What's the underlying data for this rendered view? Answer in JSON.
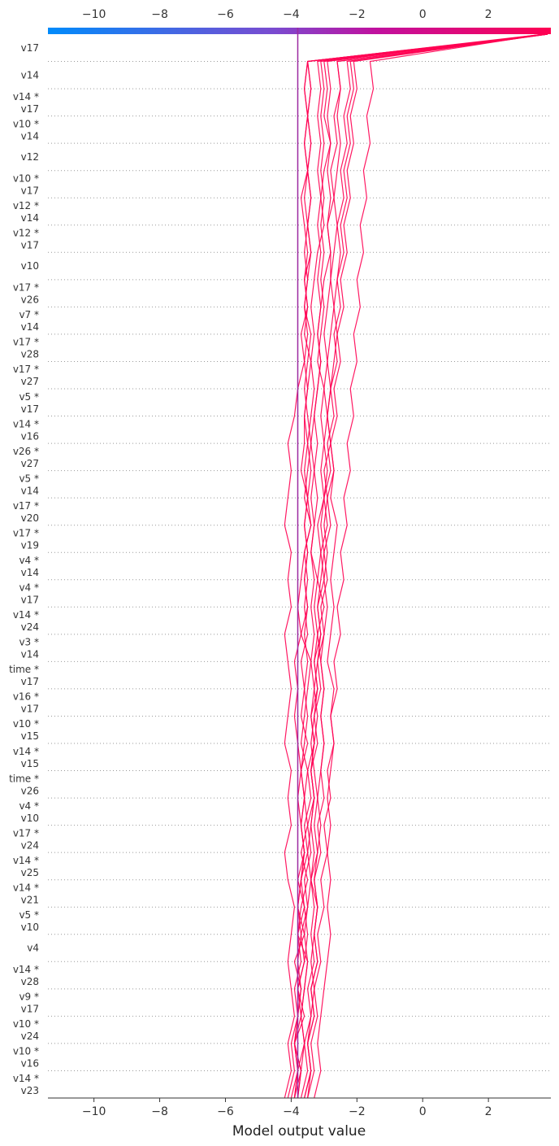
{
  "chart_data": {
    "type": "line",
    "title": "",
    "xlabel": "Model output value",
    "ylabel": "",
    "xlim": [
      -11.4,
      3.9
    ],
    "xticks": [
      -10,
      -8,
      -6,
      -4,
      -2,
      0,
      2
    ],
    "xtick_labels": [
      "−10",
      "−8",
      "−6",
      "−4",
      "−2",
      "0",
      "2"
    ],
    "base_value": -3.8,
    "colormap": [
      "#008bfb",
      "#7a4bd0",
      "#c0119f",
      "#ff0052"
    ],
    "line_color": "#ff0052",
    "grid": "dotted horizontal",
    "features": [
      [
        "v17"
      ],
      [
        "v14"
      ],
      [
        "v14 *",
        "v17"
      ],
      [
        "v10 *",
        "v14"
      ],
      [
        "v12"
      ],
      [
        "v10 *",
        "v17"
      ],
      [
        "v12 *",
        "v14"
      ],
      [
        "v12 *",
        "v17"
      ],
      [
        "v10"
      ],
      [
        "v17 *",
        "v26"
      ],
      [
        "v7 *",
        "v14"
      ],
      [
        "v17 *",
        "v28"
      ],
      [
        "v17 *",
        "v27"
      ],
      [
        "v5 *",
        "v17"
      ],
      [
        "v14 *",
        "v16"
      ],
      [
        "v26 *",
        "v27"
      ],
      [
        "v5 *",
        "v14"
      ],
      [
        "v17 *",
        "v20"
      ],
      [
        "v17 *",
        "v19"
      ],
      [
        "v4 *",
        "v14"
      ],
      [
        "v4 *",
        "v17"
      ],
      [
        "v14 *",
        "v24"
      ],
      [
        "v3 *",
        "v14"
      ],
      [
        "time *",
        "v17"
      ],
      [
        "v16 *",
        "v17"
      ],
      [
        "v10 *",
        "v15"
      ],
      [
        "v14 *",
        "v15"
      ],
      [
        "time *",
        "v26"
      ],
      [
        "v4 *",
        "v10"
      ],
      [
        "v17 *",
        "v24"
      ],
      [
        "v14 *",
        "v25"
      ],
      [
        "v14 *",
        "v21"
      ],
      [
        "v5 *",
        "v10"
      ],
      [
        "v4"
      ],
      [
        "v14 *",
        "v28"
      ],
      [
        "v9 *",
        "v17"
      ],
      [
        "v10 *",
        "v24"
      ],
      [
        "v10 *",
        "v16"
      ],
      [
        "v14 *",
        "v23"
      ]
    ],
    "series": [
      {
        "values": [
          -4.0,
          -3.8,
          -3.6,
          -3.7,
          -3.6,
          -3.5,
          -3.8,
          -3.7,
          -3.5,
          -3.7,
          -3.5,
          -3.6,
          -3.5,
          -3.7,
          -3.6,
          -3.5,
          -3.4,
          -3.7,
          -3.5,
          -3.6,
          -3.5,
          -3.6,
          -3.5,
          -3.7,
          -3.6,
          -3.6,
          -3.5,
          -3.4,
          -3.6,
          -3.5,
          -3.6,
          -3.5,
          -3.6,
          -3.7,
          -3.5,
          -3.6,
          -3.5,
          -3.6,
          -3.5,
          3.7
        ]
      },
      {
        "values": [
          -3.9,
          -3.7,
          -3.9,
          -3.6,
          -3.8,
          -3.6,
          -3.5,
          -3.6,
          -3.8,
          -3.6,
          -3.7,
          -3.6,
          -3.7,
          -3.5,
          -3.7,
          -3.6,
          -3.7,
          -3.5,
          -3.6,
          -3.5,
          -3.6,
          -3.4,
          -3.6,
          -3.5,
          -3.4,
          -3.5,
          -3.6,
          -3.5,
          -3.4,
          -3.6,
          -3.5,
          -3.4,
          -3.5,
          -3.4,
          -3.5,
          -3.4,
          -3.5,
          -3.4,
          -3.5,
          3.8
        ]
      },
      {
        "values": [
          -3.6,
          -3.4,
          -3.5,
          -3.3,
          -3.4,
          -3.2,
          -3.3,
          -3.2,
          -3.3,
          -3.1,
          -3.2,
          -3.0,
          -3.1,
          -3.0,
          -3.1,
          -3.0,
          -3.1,
          -3.2,
          -3.0,
          -3.2,
          -3.1,
          -3.2,
          -3.0,
          -3.1,
          -3.0,
          -3.1,
          -3.0,
          -3.2,
          -3.1,
          -3.0,
          -3.1,
          -3.0,
          -3.1,
          -3.0,
          -3.1,
          -3.0,
          -3.1,
          -3.0,
          -3.1,
          3.7
        ]
      },
      {
        "values": [
          -4.2,
          -4.0,
          -4.1,
          -3.9,
          -4.0,
          -4.1,
          -4.0,
          -3.9,
          -4.1,
          -4.2,
          -4.0,
          -4.1,
          -4.0,
          -4.2,
          -4.1,
          -4.0,
          -4.1,
          -4.2,
          -4.0,
          -4.1,
          -4.0,
          -4.2,
          -4.1,
          -4.0,
          -4.1,
          -3.9,
          -3.8,
          -3.6,
          -3.7,
          -3.5,
          -3.6,
          -3.4,
          -3.5,
          -3.4,
          -3.5,
          -3.4,
          -3.5,
          -3.4,
          -3.5,
          3.8
        ]
      },
      {
        "values": [
          -3.5,
          -3.4,
          -3.5,
          -3.3,
          -3.4,
          -3.2,
          -3.3,
          -3.2,
          -3.4,
          -3.2,
          -3.3,
          -3.2,
          -3.3,
          -3.4,
          -3.3,
          -3.2,
          -3.3,
          -3.2,
          -3.3,
          -3.2,
          -3.4,
          -3.3,
          -3.2,
          -3.3,
          -3.2,
          -3.3,
          -3.2,
          -3.1,
          -3.2,
          -3.1,
          -3.2,
          -3.1,
          -3.2,
          -3.1,
          -3.2,
          -3.1,
          -3.2,
          -3.1,
          -3.2,
          3.8
        ]
      },
      {
        "values": [
          -3.8,
          -3.7,
          -3.9,
          -3.8,
          -3.7,
          -3.9,
          -3.6,
          -3.8,
          -3.7,
          -3.6,
          -3.7,
          -3.8,
          -3.7,
          -3.8,
          -3.9,
          -3.8,
          -3.9,
          -3.7,
          -3.8,
          -3.7,
          -3.6,
          -3.4,
          -3.5,
          -3.4,
          -3.5,
          -3.4,
          -3.3,
          -3.4,
          -3.3,
          -3.4,
          -3.3,
          -3.2,
          -3.0,
          -3.1,
          -3.0,
          -2.8,
          -3.0,
          -2.9,
          -3.0,
          3.8
        ]
      },
      {
        "values": [
          -3.3,
          -3.1,
          -3.2,
          -3.1,
          -3.0,
          -2.9,
          -2.8,
          -2.9,
          -2.8,
          -2.9,
          -2.8,
          -2.9,
          -2.8,
          -2.7,
          -2.8,
          -2.7,
          -2.9,
          -2.8,
          -2.7,
          -2.8,
          -2.7,
          -2.6,
          -2.8,
          -2.7,
          -2.8,
          -2.9,
          -3.0,
          -2.9,
          -3.0,
          -2.9,
          -2.8,
          -2.8,
          -2.9,
          -2.8,
          -2.9,
          -2.8,
          -2.9,
          -2.8,
          -2.9,
          3.7
        ]
      },
      {
        "values": [
          -3.7,
          -3.5,
          -3.6,
          -3.4,
          -3.5,
          -3.3,
          -3.4,
          -3.3,
          -3.4,
          -3.3,
          -3.4,
          -3.3,
          -3.4,
          -3.3,
          -3.4,
          -3.3,
          -3.4,
          -3.3,
          -3.4,
          -3.3,
          -3.4,
          -3.3,
          -3.4,
          -3.3,
          -3.4,
          -3.3,
          -3.2,
          -3.1,
          -3.2,
          -3.1,
          -3.0,
          -2.8,
          -2.9,
          -2.7,
          -2.8,
          -2.6,
          -2.7,
          -2.5,
          -2.6,
          3.8
        ]
      },
      {
        "values": [
          -3.9,
          -3.8,
          -3.9,
          -3.8,
          -3.7,
          -3.8,
          -3.7,
          -3.8,
          -3.7,
          -3.6,
          -3.7,
          -3.6,
          -3.7,
          -3.6,
          -3.5,
          -3.6,
          -3.5,
          -3.6,
          -3.5,
          -3.6,
          -3.5,
          -3.6,
          -3.5,
          -3.6,
          -3.5,
          -3.6,
          -3.5,
          -3.6,
          -3.5,
          -3.6,
          -3.5,
          -3.6,
          -3.5,
          -3.6,
          -3.5,
          -3.6,
          -3.5,
          -3.6,
          -3.5,
          3.8
        ]
      },
      {
        "values": [
          -3.6,
          -3.4,
          -3.5,
          -3.4,
          -3.3,
          -3.4,
          -3.3,
          -3.2,
          -3.3,
          -3.2,
          -3.1,
          -3.2,
          -3.1,
          -3.0,
          -3.1,
          -3.0,
          -3.1,
          -3.0,
          -2.9,
          -3.0,
          -2.9,
          -3.0,
          -2.9,
          -3.0,
          -2.8,
          -2.9,
          -2.8,
          -2.7,
          -2.6,
          -2.7,
          -2.6,
          -2.5,
          -2.6,
          -2.4,
          -2.5,
          -2.3,
          -2.4,
          -2.2,
          -2.3,
          3.7
        ]
      },
      {
        "values": [
          -3.8,
          -3.7,
          -3.6,
          -3.7,
          -3.6,
          -3.5,
          -3.6,
          -3.5,
          -3.4,
          -3.5,
          -3.4,
          -3.3,
          -3.4,
          -3.3,
          -3.2,
          -3.3,
          -3.2,
          -3.1,
          -3.2,
          -3.1,
          -3.0,
          -3.1,
          -3.0,
          -2.9,
          -3.0,
          -2.9,
          -2.8,
          -2.9,
          -2.8,
          -2.7,
          -2.8,
          -2.7,
          -2.6,
          -2.7,
          -2.6,
          -2.5,
          -2.6,
          -2.5,
          -2.6,
          3.8
        ]
      },
      {
        "values": [
          -4.1,
          -3.9,
          -4.0,
          -3.8,
          -3.9,
          -3.7,
          -3.8,
          -3.6,
          -3.7,
          -3.5,
          -3.6,
          -3.4,
          -3.5,
          -3.3,
          -3.4,
          -3.2,
          -3.3,
          -3.1,
          -3.2,
          -3.0,
          -3.1,
          -2.9,
          -3.0,
          -2.8,
          -2.9,
          -2.7,
          -2.8,
          -2.6,
          -2.7,
          -2.5,
          -2.6,
          -2.4,
          -2.5,
          -2.3,
          -2.4,
          -2.2,
          -2.3,
          -2.1,
          -2.2,
          3.8
        ]
      },
      {
        "values": [
          -3.5,
          -3.3,
          -3.4,
          -3.2,
          -3.3,
          -3.1,
          -3.2,
          -3.0,
          -3.1,
          -2.9,
          -3.0,
          -2.8,
          -2.9,
          -2.7,
          -2.8,
          -2.6,
          -2.7,
          -2.5,
          -2.6,
          -2.4,
          -2.5,
          -2.3,
          -2.4,
          -2.2,
          -2.3,
          -2.1,
          -2.2,
          -2.0,
          -2.1,
          -1.9,
          -2.0,
          -1.8,
          -1.9,
          -1.7,
          -1.8,
          -1.6,
          -1.7,
          -1.5,
          -1.6,
          3.7
        ]
      },
      {
        "values": [
          -3.9,
          -3.8,
          -3.9,
          -3.7,
          -3.8,
          -3.6,
          -3.7,
          -3.5,
          -3.6,
          -3.4,
          -3.5,
          -3.3,
          -3.4,
          -3.2,
          -3.3,
          -3.1,
          -3.2,
          -3.0,
          -3.1,
          -2.9,
          -3.0,
          -2.8,
          -2.9,
          -2.7,
          -2.8,
          -2.6,
          -2.7,
          -2.5,
          -2.6,
          -2.4,
          -2.5,
          -2.3,
          -2.4,
          -2.2,
          -2.3,
          -2.1,
          -2.2,
          -2.0,
          -2.1,
          3.8
        ]
      }
    ]
  }
}
